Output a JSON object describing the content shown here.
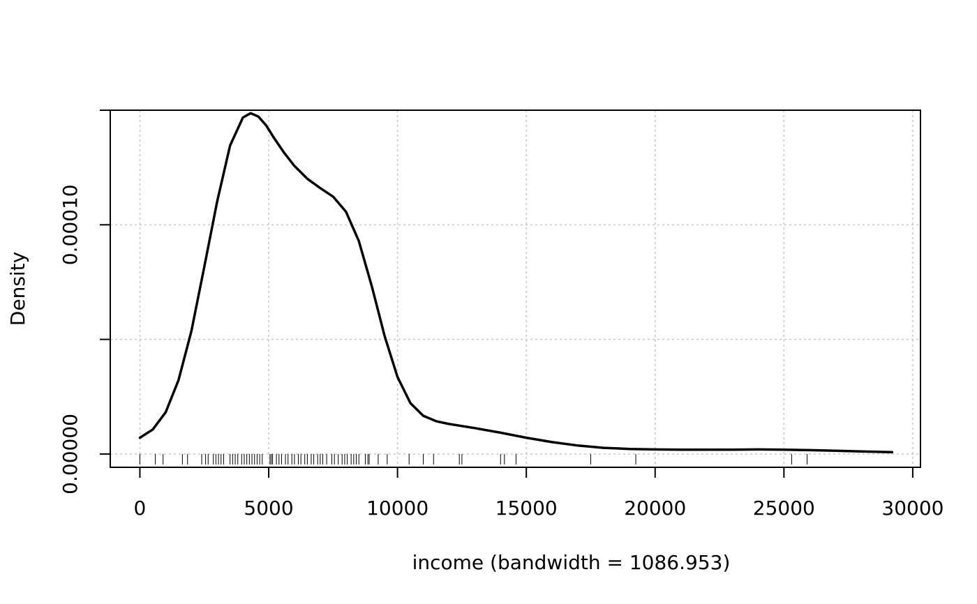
{
  "chart_data": {
    "type": "line",
    "title": "",
    "xlabel": "income (bandwidth = 1086.953)",
    "ylabel": "Density",
    "xlim": [
      -1150,
      30300
    ],
    "ylim": [
      -5.8e-06,
      0.00015
    ],
    "grid": true,
    "x_ticks": [
      0,
      5000,
      10000,
      15000,
      20000,
      25000,
      30000
    ],
    "x_tick_labels": [
      "0",
      "5000",
      "10000",
      "15000",
      "20000",
      "25000",
      "30000"
    ],
    "y_ticks": [
      0,
      5e-05,
      0.0001,
      0.00015
    ],
    "y_tick_labels": [
      "0.00000",
      "",
      "0.00010",
      ""
    ],
    "series": [
      {
        "x": [
          0,
          500,
          1000,
          1500,
          2000,
          2500,
          3000,
          3500,
          4000,
          4300,
          4600,
          4900,
          5200,
          5600,
          6000,
          6500,
          7000,
          7500,
          8000,
          8500,
          9000,
          9500,
          10000,
          10500,
          11000,
          11500,
          12000,
          13000,
          14000,
          15000,
          16000,
          17000,
          18000,
          19000,
          20000,
          21000,
          22000,
          23000,
          24000,
          25000,
          26000,
          27000,
          28000,
          29200
        ],
        "y": [
          7.1e-06,
          1.07e-05,
          1.82e-05,
          3.22e-05,
          5.37e-05,
          8.16e-05,
          0.0001102,
          0.0001346,
          0.0001468,
          0.0001487,
          0.0001472,
          0.0001434,
          0.000138,
          0.0001314,
          0.0001257,
          0.0001201,
          0.000116,
          0.0001123,
          0.0001057,
          9.29e-05,
          7.33e-05,
          5.14e-05,
          3.36e-05,
          2.22e-05,
          1.67e-05,
          1.43e-05,
          1.31e-05,
          1.13e-05,
          9.3e-06,
          7.1e-06,
          5.2e-06,
          3.7e-06,
          2.7e-06,
          2.2e-06,
          2e-06,
          1.9e-06,
          1.9e-06,
          1.9e-06,
          2e-06,
          1.9e-06,
          1.7e-06,
          1.4e-06,
          1.1e-06,
          8e-07
        ]
      }
    ],
    "rug": [
      0,
      600,
      900,
      1650,
      1850,
      2400,
      2550,
      2650,
      2850,
      2950,
      3050,
      3150,
      3250,
      3500,
      3600,
      3700,
      3800,
      3950,
      4050,
      4150,
      4250,
      4350,
      4450,
      4550,
      4650,
      4750,
      5050,
      5100,
      5150,
      5300,
      5400,
      5500,
      5650,
      5750,
      5900,
      6000,
      6150,
      6250,
      6400,
      6500,
      6650,
      6750,
      6900,
      7000,
      7100,
      7250,
      7450,
      7550,
      7700,
      7850,
      7950,
      8050,
      8200,
      8300,
      8400,
      8500,
      8750,
      8850,
      8900,
      9250,
      9600,
      10450,
      11000,
      11400,
      12400,
      12500,
      14000,
      14150,
      14600,
      17500,
      19250,
      25300,
      25900
    ]
  }
}
